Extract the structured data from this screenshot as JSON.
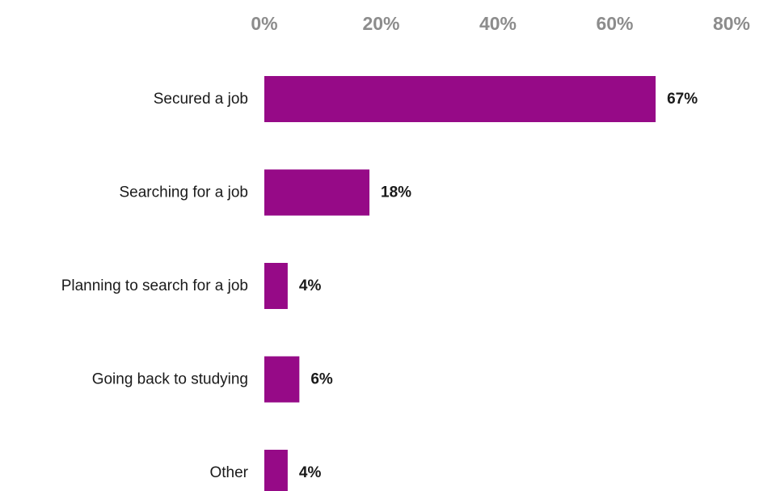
{
  "chart_data": {
    "type": "bar",
    "orientation": "horizontal",
    "categories": [
      "Secured a job",
      "Searching for a job",
      "Planning to search for a job",
      "Going back to studying",
      "Other"
    ],
    "values": [
      67,
      18,
      4,
      6,
      4
    ],
    "value_labels": [
      "67%",
      "18%",
      "4%",
      "6%",
      "4%"
    ],
    "xlim": [
      0,
      80
    ],
    "x_ticks": [
      0,
      20,
      40,
      60,
      80
    ],
    "x_tick_labels": [
      "0%",
      "20%",
      "40%",
      "60%",
      "80%"
    ],
    "x_axis_position": "top",
    "grid": false,
    "legend": "none",
    "bar_color": "#960a87"
  }
}
